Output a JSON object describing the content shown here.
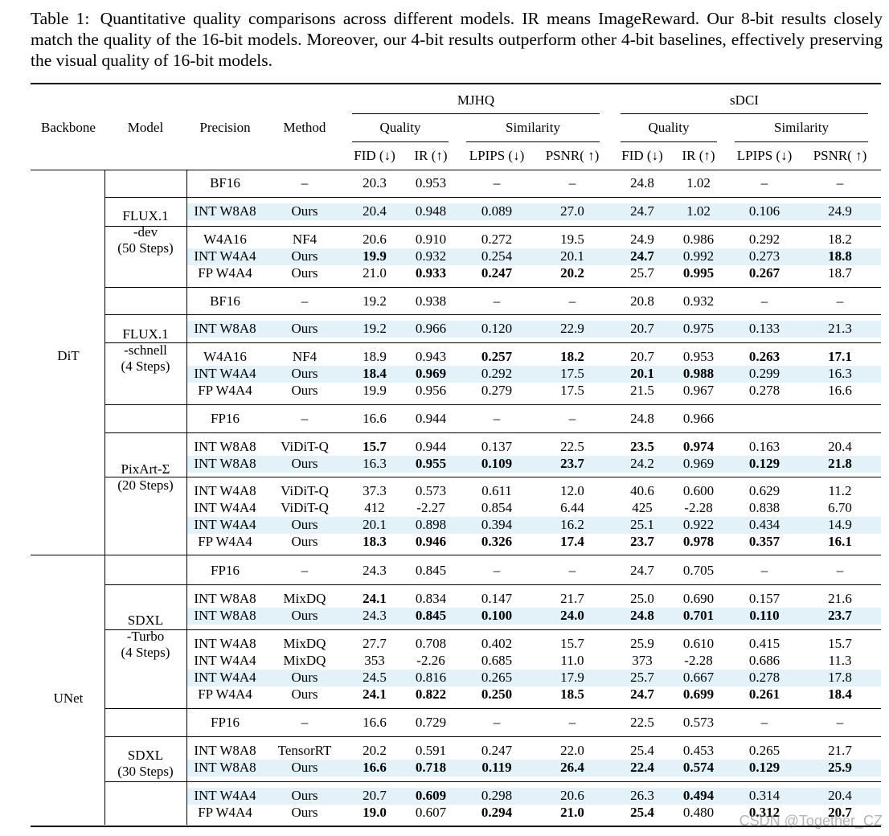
{
  "caption": {
    "label": "Table 1:",
    "text": "Quantitative quality comparisons across different models. IR means ImageReward. Our 8-bit results closely match the quality of the 16-bit models. Moreover, our 4-bit results outperform other 4-bit baselines, effectively preserving the visual quality of 16-bit models."
  },
  "header": {
    "backbone": "Backbone",
    "model": "Model",
    "precision": "Precision",
    "method": "Method",
    "mjhq": "MJHQ",
    "sdci": "sDCI",
    "quality": "Quality",
    "similarity": "Similarity",
    "fid": "FID (↓)",
    "ir": "IR (↑)",
    "lpips": "LPIPS (↓)",
    "psnr": "PSNR( ↑)"
  },
  "backbones": [
    "DiT",
    "UNet"
  ],
  "models": [
    {
      "lines": [
        "FLUX.1",
        "-dev",
        "(50 Steps)"
      ]
    },
    {
      "lines": [
        "FLUX.1",
        "-schnell",
        "(4 Steps)"
      ]
    },
    {
      "lines": [
        "PixArt-Σ",
        "(20 Steps)"
      ]
    },
    {
      "lines": [
        "SDXL",
        "-Turbo",
        "(4 Steps)"
      ]
    },
    {
      "lines": [
        "SDXL",
        "(30 Steps)"
      ]
    }
  ],
  "rows": [
    {
      "p": "BF16",
      "m": "–",
      "v": [
        "20.3",
        "0.953",
        "–",
        "–",
        "24.8",
        "1.02",
        "–",
        "–"
      ],
      "b": []
    },
    {
      "p": "INT W8A8",
      "m": "Ours",
      "v": [
        "20.4",
        "0.948",
        "0.089",
        "27.0",
        "24.7",
        "1.02",
        "0.106",
        "24.9"
      ],
      "b": []
    },
    {
      "p": "W4A16",
      "m": "NF4",
      "v": [
        "20.6",
        "0.910",
        "0.272",
        "19.5",
        "24.9",
        "0.986",
        "0.292",
        "18.2"
      ],
      "b": []
    },
    {
      "p": "INT W4A4",
      "m": "Ours",
      "v": [
        "19.9",
        "0.932",
        "0.254",
        "20.1",
        "24.7",
        "0.992",
        "0.273",
        "18.8"
      ],
      "b": [
        0,
        4,
        7
      ]
    },
    {
      "p": "FP W4A4",
      "m": "Ours",
      "v": [
        "21.0",
        "0.933",
        "0.247",
        "20.2",
        "25.7",
        "0.995",
        "0.267",
        "18.7"
      ],
      "b": [
        1,
        2,
        3,
        5,
        6
      ]
    },
    {
      "p": "BF16",
      "m": "–",
      "v": [
        "19.2",
        "0.938",
        "–",
        "–",
        "20.8",
        "0.932",
        "–",
        "–"
      ],
      "b": []
    },
    {
      "p": "INT W8A8",
      "m": "Ours",
      "v": [
        "19.2",
        "0.966",
        "0.120",
        "22.9",
        "20.7",
        "0.975",
        "0.133",
        "21.3"
      ],
      "b": []
    },
    {
      "p": "W4A16",
      "m": "NF4",
      "v": [
        "18.9",
        "0.943",
        "0.257",
        "18.2",
        "20.7",
        "0.953",
        "0.263",
        "17.1"
      ],
      "b": [
        2,
        3,
        6,
        7
      ]
    },
    {
      "p": "INT W4A4",
      "m": "Ours",
      "v": [
        "18.4",
        "0.969",
        "0.292",
        "17.5",
        "20.1",
        "0.988",
        "0.299",
        "16.3"
      ],
      "b": [
        0,
        1,
        4,
        5
      ]
    },
    {
      "p": "FP W4A4",
      "m": "Ours",
      "v": [
        "19.9",
        "0.956",
        "0.279",
        "17.5",
        "21.5",
        "0.967",
        "0.278",
        "16.6"
      ],
      "b": []
    },
    {
      "p": "FP16",
      "m": "–",
      "v": [
        "16.6",
        "0.944",
        "–",
        "–",
        "24.8",
        "0.966",
        "",
        ""
      ],
      "b": []
    },
    {
      "p": "INT W8A8",
      "m": "ViDiT-Q",
      "v": [
        "15.7",
        "0.944",
        "0.137",
        "22.5",
        "23.5",
        "0.974",
        "0.163",
        "20.4"
      ],
      "b": [
        0,
        4,
        5
      ]
    },
    {
      "p": "INT W8A8",
      "m": "Ours",
      "v": [
        "16.3",
        "0.955",
        "0.109",
        "23.7",
        "24.2",
        "0.969",
        "0.129",
        "21.8"
      ],
      "b": [
        1,
        2,
        3,
        6,
        7
      ]
    },
    {
      "p": "INT W4A8",
      "m": "ViDiT-Q",
      "v": [
        "37.3",
        "0.573",
        "0.611",
        "12.0",
        "40.6",
        "0.600",
        "0.629",
        "11.2"
      ],
      "b": []
    },
    {
      "p": "INT W4A4",
      "m": "ViDiT-Q",
      "v": [
        "412",
        "-2.27",
        "0.854",
        "6.44",
        "425",
        "-2.28",
        "0.838",
        "6.70"
      ],
      "b": []
    },
    {
      "p": "INT W4A4",
      "m": "Ours",
      "v": [
        "20.1",
        "0.898",
        "0.394",
        "16.2",
        "25.1",
        "0.922",
        "0.434",
        "14.9"
      ],
      "b": []
    },
    {
      "p": "FP W4A4",
      "m": "Ours",
      "v": [
        "18.3",
        "0.946",
        "0.326",
        "17.4",
        "23.7",
        "0.978",
        "0.357",
        "16.1"
      ],
      "b": [
        0,
        1,
        2,
        3,
        4,
        5,
        6,
        7
      ]
    },
    {
      "p": "FP16",
      "m": "–",
      "v": [
        "24.3",
        "0.845",
        "–",
        "–",
        "24.7",
        "0.705",
        "–",
        "–"
      ],
      "b": []
    },
    {
      "p": "INT W8A8",
      "m": "MixDQ",
      "v": [
        "24.1",
        "0.834",
        "0.147",
        "21.7",
        "25.0",
        "0.690",
        "0.157",
        "21.6"
      ],
      "b": [
        0
      ]
    },
    {
      "p": "INT W8A8",
      "m": "Ours",
      "v": [
        "24.3",
        "0.845",
        "0.100",
        "24.0",
        "24.8",
        "0.701",
        "0.110",
        "23.7"
      ],
      "b": [
        1,
        2,
        3,
        4,
        5,
        6,
        7
      ]
    },
    {
      "p": "INT W4A8",
      "m": "MixDQ",
      "v": [
        "27.7",
        "0.708",
        "0.402",
        "15.7",
        "25.9",
        "0.610",
        "0.415",
        "15.7"
      ],
      "b": []
    },
    {
      "p": "INT W4A4",
      "m": "MixDQ",
      "v": [
        "353",
        "-2.26",
        "0.685",
        "11.0",
        "373",
        "-2.28",
        "0.686",
        "11.3"
      ],
      "b": []
    },
    {
      "p": "INT W4A4",
      "m": "Ours",
      "v": [
        "24.5",
        "0.816",
        "0.265",
        "17.9",
        "25.7",
        "0.667",
        "0.278",
        "17.8"
      ],
      "b": []
    },
    {
      "p": "FP W4A4",
      "m": "Ours",
      "v": [
        "24.1",
        "0.822",
        "0.250",
        "18.5",
        "24.7",
        "0.699",
        "0.261",
        "18.4"
      ],
      "b": [
        0,
        1,
        2,
        3,
        4,
        5,
        6,
        7
      ]
    },
    {
      "p": "FP16",
      "m": "–",
      "v": [
        "16.6",
        "0.729",
        "–",
        "–",
        "22.5",
        "0.573",
        "–",
        "–"
      ],
      "b": []
    },
    {
      "p": "INT W8A8",
      "m": "TensorRT",
      "v": [
        "20.2",
        "0.591",
        "0.247",
        "22.0",
        "25.4",
        "0.453",
        "0.265",
        "21.7"
      ],
      "b": []
    },
    {
      "p": "INT W8A8",
      "m": "Ours",
      "v": [
        "16.6",
        "0.718",
        "0.119",
        "26.4",
        "22.4",
        "0.574",
        "0.129",
        "25.9"
      ],
      "b": [
        0,
        1,
        2,
        3,
        4,
        5,
        6,
        7
      ]
    },
    {
      "p": "INT W4A4",
      "m": "Ours",
      "v": [
        "20.7",
        "0.609",
        "0.298",
        "20.6",
        "26.3",
        "0.494",
        "0.314",
        "20.4"
      ],
      "b": [
        1,
        5
      ]
    },
    {
      "p": "FP W4A4",
      "m": "Ours",
      "v": [
        "19.0",
        "0.607",
        "0.294",
        "21.0",
        "25.4",
        "0.480",
        "0.312",
        "20.7"
      ],
      "b": [
        0,
        2,
        3,
        4,
        6,
        7
      ]
    }
  ],
  "watermark": "CSDN @Together_CZ"
}
